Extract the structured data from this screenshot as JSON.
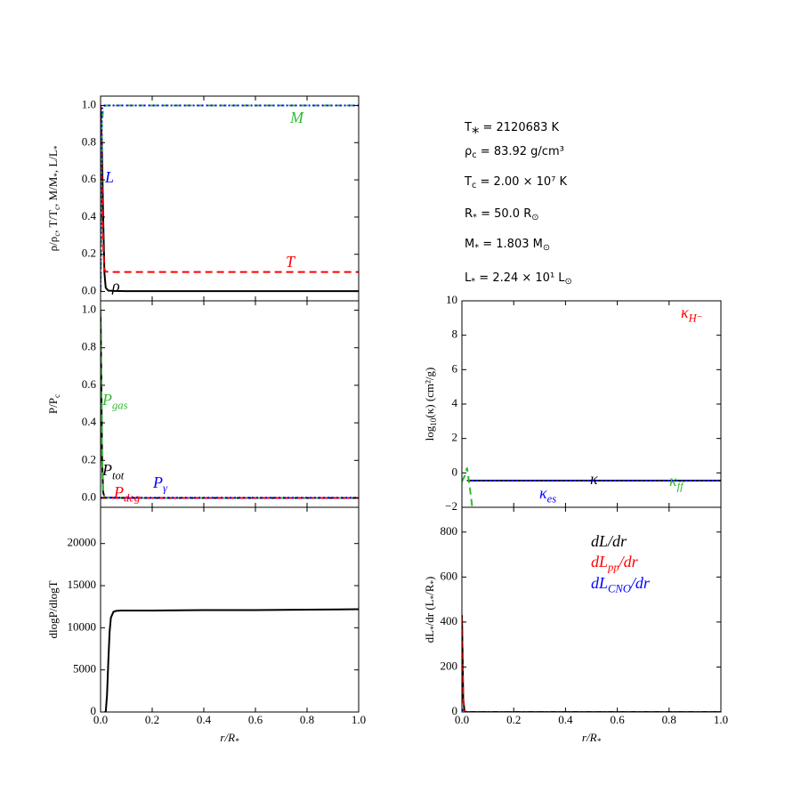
{
  "info": {
    "lines": [
      [
        "T",
        "*",
        " = 2120683 K"
      ],
      [
        "ρ",
        "c",
        " = 83.92 g/cm³"
      ],
      [
        "T",
        "c",
        " = 2.00 × 10⁷ K"
      ],
      [
        "R",
        "*",
        " = 50.0 R",
        "⊙"
      ],
      [
        "M",
        "*",
        " = 1.803 M",
        "⊙"
      ],
      [
        "L",
        "*",
        " = 2.24 × 10¹ L",
        "⊙"
      ]
    ]
  },
  "chart_data": [
    {
      "type": "line",
      "ylabel": [
        "ρ/ρ",
        "c",
        ", T/T",
        "c",
        ", M/M",
        "*",
        ", L/L",
        "*"
      ],
      "xlim": [
        0,
        1
      ],
      "ylim": [
        -0.05,
        1.05
      ],
      "xticks": [
        0,
        0.2,
        0.4,
        0.6,
        0.8,
        1
      ],
      "yticks": [
        {
          "value": 0,
          "label": "0.0"
        },
        0.2,
        0.4,
        0.6,
        0.8,
        {
          "value": 1,
          "label": "1.0"
        }
      ],
      "series": [
        {
          "name": [
            "ρ"
          ],
          "color": "#000000",
          "dash": "solid",
          "x": [
            0,
            0.005,
            0.01,
            0.015,
            0.02,
            0.03,
            0.05,
            0.1,
            0.2,
            0.4,
            0.6,
            0.8,
            1
          ],
          "values": [
            1,
            0.8,
            0.4,
            0.1,
            0.02,
            0.005,
            0.003,
            0.002,
            0.002,
            0.002,
            0.002,
            0.002,
            0.002
          ]
        },
        {
          "name": [
            "T"
          ],
          "color": "#ff0000",
          "dash": "dashed",
          "x": [
            0,
            0.005,
            0.01,
            0.015,
            0.02,
            0.03,
            0.05,
            0.1,
            0.2,
            0.4,
            0.6,
            0.8,
            1
          ],
          "values": [
            1,
            0.6,
            0.25,
            0.12,
            0.107,
            0.106,
            0.105,
            0.105,
            0.105,
            0.105,
            0.105,
            0.105,
            0.105
          ]
        },
        {
          "name": [
            "M"
          ],
          "color": "#33bb33",
          "dash": "dashed",
          "x": [
            0,
            0.005,
            0.01,
            0.015,
            0.02,
            0.03,
            0.05,
            0.1,
            0.2,
            0.4,
            0.6,
            0.8,
            1
          ],
          "values": [
            0,
            0.9,
            0.98,
            0.995,
            1,
            1,
            1,
            1,
            1,
            1,
            1,
            1,
            1
          ]
        },
        {
          "name": [
            "L"
          ],
          "color": "#0000ff",
          "dash": "dotted",
          "x": [
            0,
            0.005,
            0.01,
            0.015,
            0.02,
            0.03,
            0.05,
            0.1,
            0.2,
            0.4,
            0.6,
            0.8,
            1
          ],
          "values": [
            0,
            0.98,
            1,
            1,
            1,
            1,
            1,
            1,
            1,
            1,
            1,
            1,
            1
          ]
        }
      ]
    },
    {
      "type": "line",
      "ylabel": [
        "P/P",
        "c"
      ],
      "xlim": [
        0,
        1
      ],
      "ylim": [
        -0.05,
        1.05
      ],
      "xticks": [
        0,
        0.2,
        0.4,
        0.6,
        0.8,
        1
      ],
      "yticks": [
        {
          "value": 0,
          "label": "0.0"
        },
        0.2,
        0.4,
        0.6,
        0.8,
        {
          "value": 1,
          "label": "1.0"
        }
      ],
      "series": [
        {
          "name": [
            "P",
            "tot"
          ],
          "color": "#000000",
          "dash": "solid",
          "x": [
            0,
            0.003,
            0.006,
            0.01,
            0.015,
            0.02,
            0.05,
            0.1,
            0.4,
            1
          ],
          "values": [
            1,
            0.6,
            0.2,
            0.03,
            0.005,
            0.002,
            0.001,
            0,
            0,
            0
          ]
        },
        {
          "name": [
            "P",
            "gas"
          ],
          "color": "#33bb33",
          "dash": "dashed",
          "x": [
            0,
            0.003,
            0.006,
            0.01,
            0.015,
            0.02,
            0.05,
            0.1,
            0.4,
            1
          ],
          "values": [
            1,
            0.6,
            0.2,
            0.03,
            0.005,
            0.002,
            0.001,
            0,
            0,
            0
          ]
        },
        {
          "name": [
            "P",
            "deg"
          ],
          "color": "#ff0000",
          "dash": "dashed",
          "x": [
            0,
            0.1,
            0.4,
            1
          ],
          "values": [
            0,
            0,
            0,
            0
          ]
        },
        {
          "name": [
            "P",
            "γ"
          ],
          "color": "#0000ff",
          "dash": "dotted",
          "x": [
            0,
            0.1,
            0.4,
            1
          ],
          "values": [
            0.001,
            0.001,
            0.001,
            0.001
          ]
        }
      ]
    },
    {
      "type": "line",
      "ylabel": [
        "dlogP/dlogT"
      ],
      "xlabel": [
        "r/R",
        "*"
      ],
      "xlim": [
        0,
        1
      ],
      "ylim": [
        0,
        24300
      ],
      "xticks": [
        {
          "value": 0,
          "label": "0.0"
        },
        0.2,
        0.4,
        0.6,
        0.8,
        {
          "value": 1,
          "label": "1.0"
        }
      ],
      "yticks": [
        0,
        5000,
        10000,
        15000,
        20000
      ],
      "series": [
        {
          "color": "#000000",
          "dash": "solid",
          "x": [
            0.015,
            0.02,
            0.025,
            0.03,
            0.035,
            0.04,
            0.05,
            0.06,
            0.08,
            0.1,
            0.2,
            0.4,
            0.6,
            0.8,
            1
          ],
          "values": [
            0,
            0,
            2000,
            6000,
            9500,
            11200,
            11900,
            12000,
            12050,
            12050,
            12050,
            12100,
            12100,
            12150,
            12200
          ]
        }
      ]
    },
    {
      "type": "line",
      "ylabel": [
        "log",
        "10",
        "(κ) (cm²/g)"
      ],
      "xlim": [
        0,
        1
      ],
      "ylim": [
        -2,
        10
      ],
      "xticks": [
        0,
        0.2,
        0.4,
        0.6,
        0.8,
        1
      ],
      "yticks": [
        {
          "value": -2,
          "label": "−2"
        },
        0,
        2,
        4,
        6,
        8,
        10
      ],
      "series": [
        {
          "name": [
            "κ"
          ],
          "color": "#000000",
          "dash": "solid",
          "x": [
            0.02,
            0.2,
            0.4,
            0.6,
            0.8,
            1
          ],
          "values": [
            -0.45,
            -0.45,
            -0.45,
            -0.45,
            -0.45,
            -0.45
          ]
        },
        {
          "name": [
            "κ",
            "es"
          ],
          "color": "#0000ff",
          "dash": "dotted",
          "x": [
            0.02,
            0.2,
            0.4,
            0.6,
            0.8,
            1
          ],
          "values": [
            -0.45,
            -0.45,
            -0.45,
            -0.45,
            -0.45,
            -0.45
          ]
        },
        {
          "name": [
            "κ",
            "ff"
          ],
          "color": "#33bb33",
          "dash": "dashed",
          "x": [
            0,
            0.01,
            0.02,
            0.03,
            0.04
          ],
          "values": [
            -0.5,
            -0.2,
            0.3,
            -0.8,
            -2
          ]
        },
        {
          "name": [
            "κ",
            "H⁻"
          ],
          "color": "#ff0000",
          "dash": "dashed"
        }
      ]
    },
    {
      "type": "line",
      "ylabel": [
        "dL",
        "*",
        "/dr (L",
        "*",
        "/R",
        "*",
        ")"
      ],
      "xlabel": [
        "r/R",
        "*"
      ],
      "xlim": [
        0,
        1
      ],
      "ylim": [
        0,
        910
      ],
      "xticks": [
        {
          "value": 0,
          "label": "0.0"
        },
        0.2,
        0.4,
        0.6,
        0.8,
        {
          "value": 1,
          "label": "1.0"
        }
      ],
      "yticks": [
        0,
        200,
        400,
        600,
        800
      ],
      "series": [
        {
          "name": [
            "dL/dr"
          ],
          "color": "#000000",
          "dash": "solid",
          "x": [
            0,
            0.002,
            0.005,
            0.01,
            0.02,
            1
          ],
          "values": [
            430,
            300,
            60,
            2,
            0,
            0
          ]
        },
        {
          "name": [
            "dL",
            "pp",
            "/dr"
          ],
          "color": "#ff0000",
          "dash": "dashed",
          "x": [
            0,
            0.002,
            0.005,
            0.01,
            0.02,
            1
          ],
          "values": [
            420,
            290,
            50,
            1,
            0,
            0
          ]
        },
        {
          "name": [
            "dL",
            "CNO",
            "/dr"
          ],
          "color": "#0000ff",
          "dash": "dotted",
          "x": [
            0,
            0.002,
            0.005,
            0.01,
            0.02,
            1
          ],
          "values": [
            10,
            10,
            5,
            1,
            0,
            0
          ]
        }
      ]
    }
  ]
}
